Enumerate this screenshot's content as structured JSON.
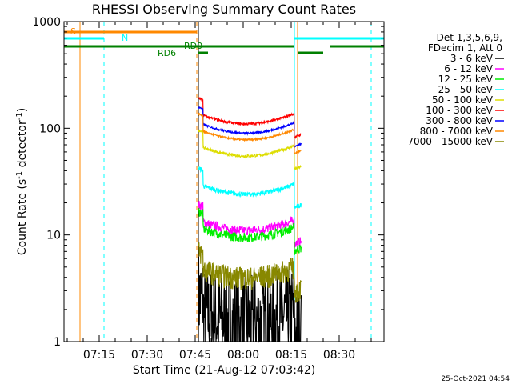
{
  "chart_data": {
    "type": "line",
    "title": "RHESSI Observing Summary Count Rates",
    "xlabel": "Start Time (21-Aug-12 07:03:42)",
    "ylabel_main": "Count Rate (s",
    "ylabel_sup1": "-1",
    "ylabel_mid": " detector",
    "ylabel_sup2": "-1",
    "ylabel_end": ")",
    "ylog": true,
    "ylim": [
      1,
      1000
    ],
    "xlim_min": [
      424,
      524
    ],
    "xticks": [
      {
        "label": "07:15",
        "min": 435
      },
      {
        "label": "07:30",
        "min": 450
      },
      {
        "label": "07:45",
        "min": 465
      },
      {
        "label": "08:00",
        "min": 480
      },
      {
        "label": "08:15",
        "min": 495
      },
      {
        "label": "08:30",
        "min": 510
      }
    ],
    "yticks": [
      {
        "label": "1",
        "value": 1
      },
      {
        "label": "10",
        "value": 10
      },
      {
        "label": "100",
        "value": 100
      },
      {
        "label": "1000",
        "value": 1000
      }
    ],
    "legend_header": [
      "Det 1,3,5,6,9,",
      "FDecim 1, Att 0"
    ],
    "series": [
      {
        "name": "3 - 6 keV",
        "color": "#000000",
        "level": 1.5,
        "noise": 0.45
      },
      {
        "name": "6 - 12 keV",
        "color": "#ff00ff",
        "level": 11,
        "noise": 0.1
      },
      {
        "name": "12 - 25 keV",
        "color": "#00ee00",
        "level": 9.5,
        "noise": 0.1
      },
      {
        "name": "25 - 50 keV",
        "color": "#00ffff",
        "level": 24,
        "noise": 0.05
      },
      {
        "name": "50 - 100 keV",
        "color": "#dddd00",
        "level": 55,
        "noise": 0.03
      },
      {
        "name": "100 - 300 keV",
        "color": "#ff0000",
        "level": 110,
        "noise": 0.025
      },
      {
        "name": "300 - 800 keV",
        "color": "#0000ff",
        "level": 90,
        "noise": 0.02
      },
      {
        "name": "800 - 7000 keV",
        "color": "#ff8800",
        "level": 78,
        "noise": 0.02
      },
      {
        "name": "7000 - 15000 keV",
        "color": "#888800",
        "level": 4,
        "noise": 0.25
      }
    ],
    "data_interval_min": [
      466,
      496
    ],
    "annotations": [
      {
        "text": "S",
        "color": "#ff8800"
      },
      {
        "text": "N",
        "color": "#00ffff"
      },
      {
        "text": "RD0",
        "color": "#008000"
      },
      {
        "text": "RD6",
        "color": "#008000"
      }
    ],
    "vertical_markers": [
      {
        "min": 429,
        "color": "#ff8800",
        "dash": false
      },
      {
        "min": 436.5,
        "color": "#00ffff",
        "dash": true
      },
      {
        "min": 465.5,
        "color": "#ff8800",
        "dash": true
      },
      {
        "min": 466,
        "color": "#000000",
        "dash": false
      },
      {
        "min": 496,
        "color": "#00ffff",
        "dash": false
      },
      {
        "min": 497,
        "color": "#ff8800",
        "dash": false
      },
      {
        "min": 520,
        "color": "#00ffff",
        "dash": true
      }
    ],
    "flag_bars": [
      {
        "from": 424,
        "to": 465.5,
        "color": "#ff8800"
      },
      {
        "from": 424,
        "to": 436.5,
        "color": "#00ffff"
      },
      {
        "from": 496,
        "to": 524,
        "color": "#00ffff"
      },
      {
        "from": 424,
        "to": 496,
        "color": "#008000"
      },
      {
        "from": 466,
        "to": 469,
        "color": "#008000"
      },
      {
        "from": 497,
        "to": 505,
        "color": "#008000"
      },
      {
        "from": 507,
        "to": 524,
        "color": "#008000"
      }
    ]
  },
  "timestamp": "25-Oct-2021 04:54"
}
